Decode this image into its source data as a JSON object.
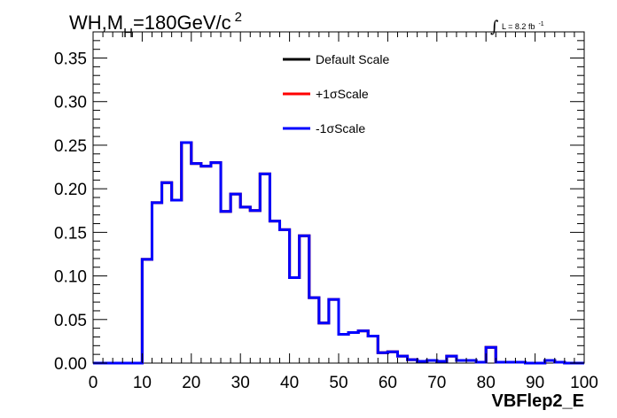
{
  "chart_data": {
    "type": "line",
    "title_main": "WH,M",
    "title_sub": "H",
    "title_rest": "=180GeV/c",
    "title_sup": "2",
    "lumi_main": "L = 8.2 fb",
    "lumi_sup": "-1",
    "xlabel": "VBFlep2_E",
    "ylabel": "",
    "xlim": [
      0,
      100
    ],
    "ylim": [
      0,
      0.38
    ],
    "x_ticks": [
      0,
      10,
      20,
      30,
      40,
      50,
      60,
      70,
      80,
      90,
      100
    ],
    "x_tick_labels": [
      "0",
      "10",
      "20",
      "30",
      "40",
      "50",
      "60",
      "70",
      "80",
      "90",
      "100"
    ],
    "y_ticks": [
      0,
      0.05,
      0.1,
      0.15,
      0.2,
      0.25,
      0.3,
      0.35
    ],
    "y_tick_labels": [
      "0.00",
      "0.05",
      "0.10",
      "0.15",
      "0.20",
      "0.25",
      "0.30",
      "0.35"
    ],
    "grid": false,
    "legend_position": "top-center",
    "bin_width": 2,
    "bin_edges_start": 0,
    "series": [
      {
        "name": "Default Scale",
        "color": "#000000"
      },
      {
        "name": "+1σScale",
        "color": "#ff0000"
      },
      {
        "name": "-1σScale",
        "color": "#0000ff"
      }
    ],
    "values": [
      0,
      0,
      0,
      0,
      0,
      0.119,
      0.184,
      0.207,
      0.187,
      0.253,
      0.229,
      0.226,
      0.23,
      0.174,
      0.194,
      0.179,
      0.175,
      0.217,
      0.163,
      0.153,
      0.098,
      0.146,
      0.075,
      0.046,
      0.073,
      0.033,
      0.035,
      0.037,
      0.031,
      0.012,
      0.013,
      0.008,
      0.004,
      0.002,
      0.003,
      0.002,
      0.008,
      0.003,
      0.003,
      0.001,
      0.018,
      0.001,
      0.001,
      0.001,
      0.0,
      0.0,
      0.003,
      0.001,
      0.0,
      0.0
    ]
  }
}
